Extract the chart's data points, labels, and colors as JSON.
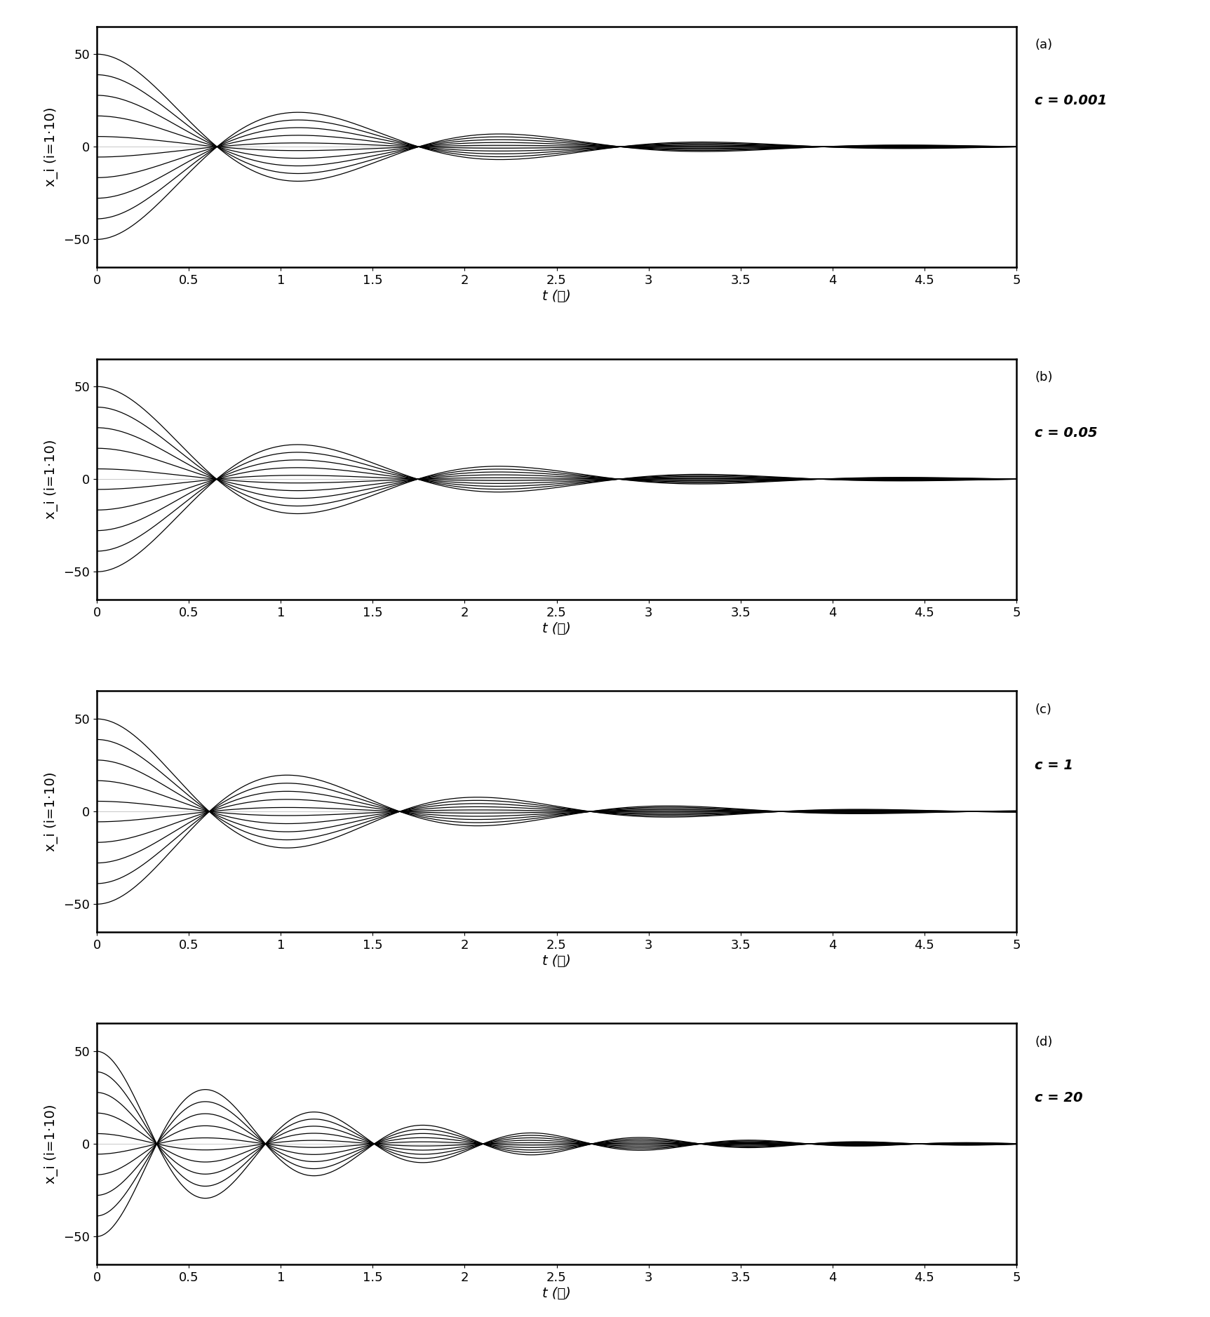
{
  "panels": [
    {
      "label": "(a)",
      "c_text": "c = 0.001",
      "c_val": 0.001
    },
    {
      "label": "(b)",
      "c_text": "c = 0.05",
      "c_val": 0.05
    },
    {
      "label": "(c)",
      "c_text": "c = 1",
      "c_val": 1.0
    },
    {
      "label": "(d)",
      "c_text": "c = 20",
      "c_val": 20.0
    }
  ],
  "n_agents": 10,
  "t_end": 5.0,
  "t_steps": 2000,
  "ylim": [
    -65,
    65
  ],
  "yticks": [
    -50,
    0,
    50
  ],
  "xticks": [
    0,
    0.5,
    1,
    1.5,
    2,
    2.5,
    3,
    3.5,
    4,
    4.5,
    5
  ],
  "xlabel": "t (秒)",
  "ylabel": "x_i (i=1·10)",
  "line_color": "#000000",
  "line_width": 0.9,
  "bg_color": "#ffffff",
  "font_size_tick": 13,
  "font_size_label": 14,
  "font_size_annot": 13
}
